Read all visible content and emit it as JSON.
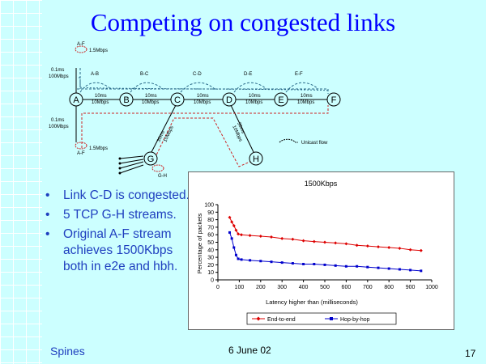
{
  "slide": {
    "title": "Competing on congested links",
    "bullets": [
      "Link C-D is congested.",
      "5 TCP G-H streams.",
      "Original A-F stream achieves 1500Kbps both in e2e and hbh."
    ],
    "footer_left": "Spines",
    "footer_date": "6 June 02",
    "page_number": "17"
  },
  "diagram": {
    "nodes": [
      "A",
      "B",
      "C",
      "D",
      "E",
      "F",
      "G",
      "H"
    ],
    "link_labels": [
      "10ms",
      "10Mbps"
    ],
    "flow_labels": [
      "A-B",
      "B-C",
      "C-D",
      "D-E",
      "E-F",
      "A-F",
      "A-F",
      "G-H"
    ],
    "rate_label": "1.5Mbps",
    "access_link": [
      "0.1ms",
      "100Mbps"
    ],
    "g_link": [
      "30ms",
      "10Mbps"
    ],
    "h_link": [
      "30ms",
      "10Mbps"
    ],
    "legend": "Unicast flow",
    "colors": {
      "flow_blue": "#2a6a8a",
      "flow_red": "#cc2222"
    }
  },
  "chart_data": {
    "type": "line",
    "title": "1500Kbps",
    "xlabel": "Latency higher than (milliseconds)",
    "ylabel": "Percentage of packets",
    "xlim": [
      0,
      1000
    ],
    "ylim": [
      0,
      100
    ],
    "xticks": [
      0,
      100,
      200,
      300,
      400,
      500,
      600,
      700,
      800,
      900,
      1000
    ],
    "yticks": [
      0,
      10,
      20,
      30,
      40,
      50,
      60,
      70,
      80,
      90,
      100
    ],
    "legend_position": "bottom",
    "series": [
      {
        "name": "End-to-end",
        "color": "#dd0000",
        "x": [
          55,
          65,
          75,
          85,
          95,
          110,
          150,
          200,
          250,
          300,
          350,
          400,
          450,
          500,
          550,
          600,
          650,
          700,
          750,
          800,
          850,
          900,
          950
        ],
        "y": [
          83,
          77,
          72,
          66,
          61,
          60,
          59,
          58,
          57,
          55,
          54,
          52,
          51,
          50,
          49,
          48,
          46,
          45,
          44,
          43,
          42,
          40,
          39
        ]
      },
      {
        "name": "Hop-by-hop",
        "color": "#0000cc",
        "x": [
          55,
          65,
          75,
          85,
          95,
          110,
          150,
          200,
          250,
          300,
          350,
          400,
          450,
          500,
          550,
          600,
          650,
          700,
          750,
          800,
          850,
          900,
          950
        ],
        "y": [
          63,
          55,
          43,
          33,
          28,
          27,
          26,
          25,
          24,
          23,
          22,
          21,
          21,
          20,
          19,
          18,
          18,
          17,
          16,
          15,
          14,
          13,
          12
        ]
      }
    ]
  }
}
